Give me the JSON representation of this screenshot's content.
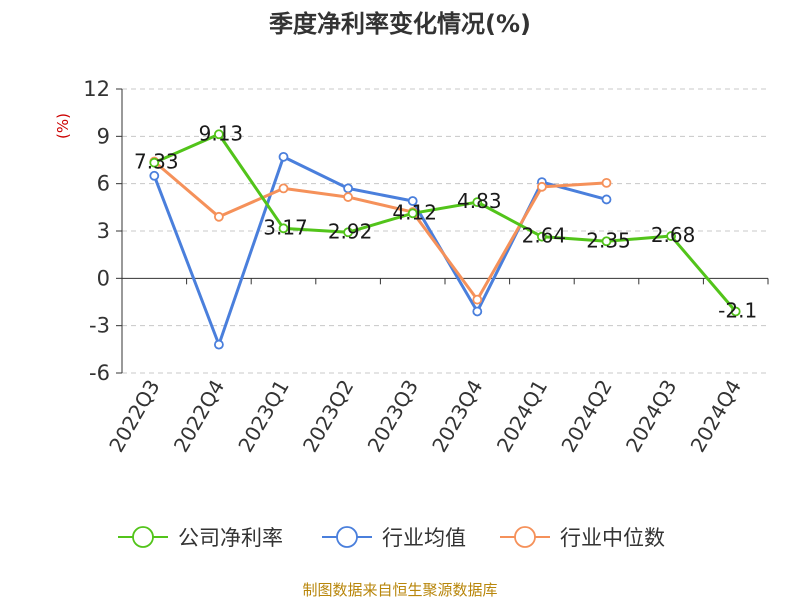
{
  "chart_data": {
    "type": "line",
    "title": "季度净利率变化情况(%)",
    "ylabel": "(%)",
    "ylim": [
      -6,
      12
    ],
    "yticks": [
      -6,
      -3,
      0,
      3,
      6,
      9,
      12
    ],
    "categories": [
      "2022Q3",
      "2022Q4",
      "2023Q1",
      "2023Q2",
      "2023Q3",
      "2023Q4",
      "2024Q1",
      "2024Q2",
      "2024Q3",
      "2024Q4"
    ],
    "grid": true,
    "legend_position": "bottom",
    "series": [
      {
        "name": "公司净利率",
        "color": "#52c41a",
        "values": [
          7.33,
          9.13,
          3.17,
          2.92,
          4.12,
          4.83,
          2.64,
          2.35,
          2.68,
          -2.1
        ],
        "labels": [
          "7.33",
          "9.13",
          "3.17",
          "2.92",
          "4.12",
          "4.83",
          "2.64",
          "2.35",
          "2.68",
          "-2.1"
        ]
      },
      {
        "name": "行业均值",
        "color": "#4a7fdc",
        "values": [
          6.5,
          -4.2,
          7.7,
          5.7,
          4.9,
          -2.1,
          6.1,
          5.0,
          null,
          null
        ]
      },
      {
        "name": "行业中位数",
        "color": "#f5915a",
        "values": [
          7.4,
          3.9,
          5.7,
          5.15,
          4.2,
          -1.35,
          5.8,
          6.05,
          null,
          null
        ]
      }
    ]
  },
  "footer": {
    "source": "制图数据来自恒生聚源数据库"
  }
}
